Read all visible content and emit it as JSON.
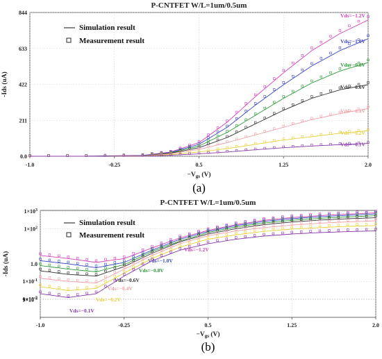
{
  "chart_data": [
    {
      "type": "line",
      "panel_label": "(a)",
      "title": "P-CNTFET  W/L=1um/0.5um",
      "xlabel": "−V",
      "xlabel_sub": "gs",
      "xlabel_unit": " (V)",
      "ylabel": "-Ids (uA)",
      "xlim": [
        -1.0,
        2.0
      ],
      "ylim": [
        0,
        844
      ],
      "yscale": "linear",
      "x_ticks": [
        "-1.0",
        "-0.25",
        "0.5",
        "1.25",
        "2.0"
      ],
      "x_tick_values": [
        -1.0,
        -0.25,
        0.5,
        1.25,
        2.0
      ],
      "y_ticks": [
        "0.0",
        "211",
        "422",
        "633",
        "844"
      ],
      "y_tick_values": [
        0,
        211,
        422,
        633,
        844
      ],
      "grid": true,
      "legend": {
        "position": "top-left",
        "entries": [
          {
            "label": "Simulation result",
            "marker": "line"
          },
          {
            "label": "Measurement result",
            "marker": "square"
          }
        ]
      },
      "x": [
        -1.0,
        -0.5,
        0.0,
        0.25,
        0.5,
        0.75,
        1.0,
        1.25,
        1.5,
        1.75,
        2.0
      ],
      "series": [
        {
          "name": "Vds=−1.2V",
          "color": "#d63fb8",
          "values": [
            0,
            0.5,
            5,
            25,
            80,
            200,
            350,
            490,
            620,
            720,
            800
          ]
        },
        {
          "name": "Vds=−1.0V",
          "color": "#3a45c8",
          "values": [
            0,
            0.4,
            4,
            22,
            70,
            170,
            300,
            420,
            530,
            620,
            690
          ]
        },
        {
          "name": "Vds=−0.8V",
          "color": "#2e9a3a",
          "values": [
            0,
            0.3,
            3,
            20,
            60,
            140,
            240,
            340,
            430,
            500,
            550
          ]
        },
        {
          "name": "Vds=−0.6V",
          "color": "#333333",
          "values": [
            0,
            0.2,
            2,
            18,
            50,
            110,
            190,
            270,
            340,
            390,
            420
          ]
        },
        {
          "name": "Vds=−0.4V",
          "color": "#f0a0a8",
          "values": [
            0,
            0.1,
            1.5,
            15,
            40,
            80,
            125,
            170,
            215,
            250,
            280
          ]
        },
        {
          "name": "Vds=−0.2V",
          "color": "#e8d03a",
          "values": [
            0,
            0.05,
            1,
            10,
            25,
            45,
            70,
            95,
            115,
            135,
            150
          ]
        },
        {
          "name": "Vds=−0.1V",
          "color": "#8a3aa8",
          "values": [
            0,
            0.02,
            0.5,
            6,
            14,
            25,
            38,
            50,
            60,
            68,
            75
          ]
        }
      ]
    },
    {
      "type": "line",
      "panel_label": "(b)",
      "title": "P-CNTFET  W/L=1um/0.5um",
      "xlabel": "−V",
      "xlabel_sub": "gs",
      "xlabel_unit": " (V)",
      "ylabel": "-Ids (uA)",
      "xlim": [
        -1.0,
        2.0
      ],
      "ylim": [
        0.0009,
        1100
      ],
      "yscale": "log",
      "x_ticks": [
        "-1.0",
        "-0.25",
        "0.5",
        "1.25",
        "2.0"
      ],
      "x_tick_values": [
        -1.0,
        -0.25,
        0.5,
        1.25,
        2.0
      ],
      "y_ticks": [
        {
          "base": "1×10",
          "exp": "3",
          "value": 1000
        },
        {
          "base": "1×10",
          "exp": "2",
          "value": 100
        },
        {
          "base": "1.0",
          "exp": "",
          "value": 1
        },
        {
          "base": "1×10",
          "exp": "-1",
          "value": 0.1
        },
        {
          "base": "1×10",
          "exp": "-2",
          "value": 0.01
        },
        {
          "base": "9×10",
          "exp": "-3",
          "value": 0.009
        }
      ],
      "grid": true,
      "legend": {
        "position": "top-left",
        "entries": [
          {
            "label": "Simulation result",
            "marker": "line"
          },
          {
            "label": "Measurement result",
            "marker": "square"
          }
        ]
      },
      "x": [
        -1.0,
        -0.75,
        -0.5,
        -0.25,
        0.0,
        0.25,
        0.5,
        0.75,
        1.0,
        1.25,
        1.5,
        1.75,
        2.0
      ],
      "series": [
        {
          "name": "Vds=−1.2V",
          "color": "#d63fb8",
          "values": [
            3,
            2,
            1.2,
            2,
            8,
            30,
            80,
            170,
            300,
            430,
            560,
            680,
            800
          ]
        },
        {
          "name": "Vds=−1.0V",
          "color": "#3a45c8",
          "values": [
            1.5,
            1,
            0.6,
            1.2,
            6,
            25,
            70,
            150,
            260,
            370,
            480,
            580,
            690
          ]
        },
        {
          "name": "Vds=−0.8V",
          "color": "#2e9a3a",
          "values": [
            0.8,
            0.5,
            0.35,
            0.9,
            5,
            20,
            60,
            125,
            210,
            300,
            390,
            470,
            550
          ]
        },
        {
          "name": "Vds=−0.6V",
          "color": "#333333",
          "values": [
            0.4,
            0.25,
            0.2,
            0.7,
            4,
            18,
            50,
            100,
            170,
            240,
            310,
            370,
            420
          ]
        },
        {
          "name": "Vds=−0.4V",
          "color": "#f0a0a8",
          "values": [
            0.15,
            0.1,
            0.08,
            0.5,
            3,
            14,
            40,
            75,
            115,
            160,
            205,
            245,
            280
          ]
        },
        {
          "name": "Vds=−0.2V",
          "color": "#e8d03a",
          "values": [
            0.05,
            0.03,
            0.04,
            0.3,
            2,
            9,
            25,
            45,
            70,
            95,
            115,
            135,
            150
          ]
        },
        {
          "name": "Vds=−0.1V",
          "color": "#8a3aa8",
          "values": [
            0.02,
            0.012,
            0.02,
            0.2,
            1.5,
            6,
            14,
            25,
            38,
            50,
            60,
            68,
            75
          ]
        }
      ]
    }
  ]
}
